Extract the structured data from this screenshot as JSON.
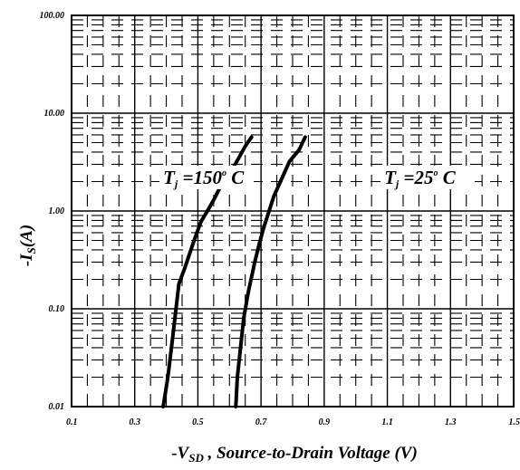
{
  "chart_data": {
    "type": "line",
    "xlabel_prefix": "-V",
    "xlabel_sub": "SD",
    "xlabel_rest": " , Source-to-Drain Voltage (V)",
    "ylabel_prefix": "-I",
    "ylabel_sub": "S",
    "ylabel_rest": "(A)",
    "xlim": [
      0.1,
      1.5
    ],
    "ylim": [
      0.01,
      100
    ],
    "yscale": "log",
    "xscale": "linear",
    "grid": true,
    "x_ticks": [
      "0.1",
      "0.3",
      "0.5",
      "0.7",
      "0.9",
      "1.1",
      "1.3",
      "1.5"
    ],
    "y_ticks": [
      "0.01",
      "0.10",
      "1.00",
      "10.00",
      "100.00"
    ],
    "series": [
      {
        "x": [
          0.39,
          0.405,
          0.42,
          0.44,
          0.46,
          0.49,
          0.51,
          0.53,
          0.55,
          0.58,
          0.61,
          0.63,
          0.65,
          0.67
        ],
        "y": [
          0.01,
          0.02,
          0.05,
          0.18,
          0.27,
          0.52,
          0.78,
          1.0,
          1.3,
          2.0,
          2.7,
          3.5,
          4.6,
          5.7
        ]
      },
      {
        "x": [
          0.62,
          0.625,
          0.635,
          0.645,
          0.66,
          0.68,
          0.695,
          0.71,
          0.74,
          0.77,
          0.79,
          0.82,
          0.84
        ],
        "y": [
          0.01,
          0.02,
          0.04,
          0.08,
          0.15,
          0.3,
          0.47,
          0.7,
          1.4,
          2.3,
          3.2,
          4.2,
          5.7
        ]
      }
    ],
    "annotations": [
      {
        "prefix": "T",
        "sub": "j",
        "rest": " =150",
        "sup": "o",
        "tail": " C",
        "x": 0.39,
        "y": 1.9
      },
      {
        "prefix": "T",
        "sub": "j",
        "rest": " =25",
        "sup": "o",
        "tail": " C",
        "x": 1.09,
        "y": 1.9
      }
    ],
    "colors": {
      "line": "#000000",
      "grid": "#000000",
      "background": "#ffffff"
    }
  }
}
